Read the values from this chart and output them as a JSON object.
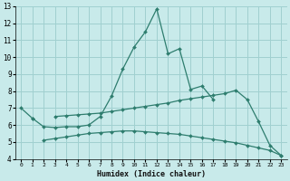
{
  "xlabel": "Humidex (Indice chaleur)",
  "bg_color": "#c8eaea",
  "grid_color": "#a0d0d0",
  "line_color": "#2e7d6e",
  "xlim": [
    -0.5,
    23.5
  ],
  "ylim": [
    4,
    13
  ],
  "xticks": [
    0,
    1,
    2,
    3,
    4,
    5,
    6,
    7,
    8,
    9,
    10,
    11,
    12,
    13,
    14,
    15,
    16,
    17,
    18,
    19,
    20,
    21,
    22,
    23
  ],
  "yticks": [
    4,
    5,
    6,
    7,
    8,
    9,
    10,
    11,
    12,
    13
  ],
  "line1_y": [
    7.0,
    6.4,
    null,
    null,
    null,
    null,
    null,
    null,
    null,
    null,
    null,
    null,
    null,
    null,
    null,
    null,
    null,
    null,
    null,
    null,
    null,
    null,
    null,
    null
  ],
  "line1b_x": [
    1,
    2,
    3,
    4,
    5,
    6,
    7,
    8,
    9,
    10,
    11,
    12,
    13,
    14,
    15,
    16,
    17
  ],
  "line1b_y": [
    6.4,
    5.9,
    5.85,
    5.9,
    5.9,
    6.0,
    6.5,
    7.7,
    9.3,
    10.6,
    11.5,
    12.85,
    10.2,
    10.5,
    8.1,
    8.3,
    7.5
  ],
  "line2_x": [
    3,
    4,
    5,
    6,
    7,
    8,
    9,
    10,
    11,
    12,
    13,
    14,
    15,
    16,
    17,
    18,
    19,
    20,
    21,
    22,
    23
  ],
  "line2_y": [
    6.5,
    6.55,
    6.6,
    6.65,
    6.7,
    6.8,
    6.9,
    7.0,
    7.1,
    7.2,
    7.3,
    7.45,
    7.55,
    7.65,
    7.75,
    7.85,
    8.05,
    7.5,
    6.2,
    4.8,
    4.2
  ],
  "line3_x": [
    2,
    3,
    4,
    5,
    6,
    7,
    8,
    9,
    10,
    11,
    12,
    13,
    14,
    15,
    16,
    17,
    18,
    19,
    20,
    21,
    22,
    23
  ],
  "line3_y": [
    5.1,
    5.2,
    5.3,
    5.4,
    5.5,
    5.55,
    5.6,
    5.65,
    5.65,
    5.6,
    5.55,
    5.5,
    5.45,
    5.35,
    5.25,
    5.15,
    5.05,
    4.95,
    4.8,
    4.65,
    4.5,
    4.2
  ]
}
